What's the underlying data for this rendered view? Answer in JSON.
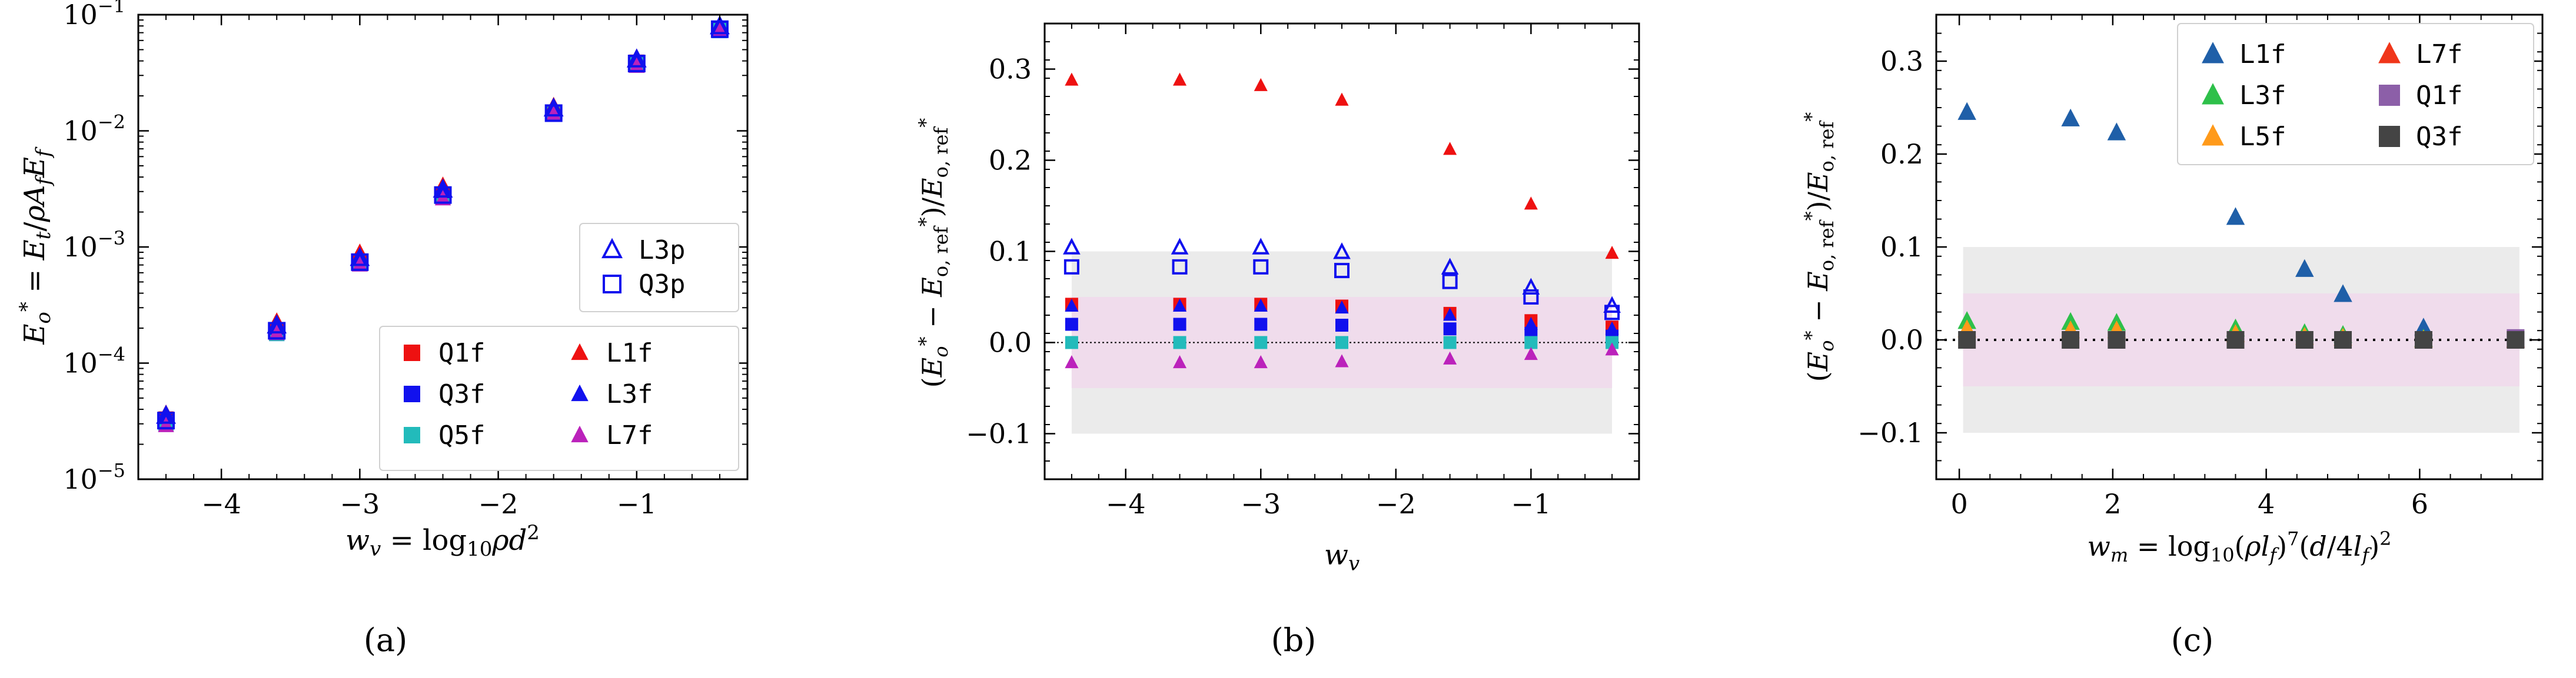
{
  "figure": {
    "panels": [
      {
        "id": "a",
        "caption": "(a)",
        "chart_data": {
          "type": "scatter",
          "yscale": "log",
          "xlabel": "w_v = log10 ρ d²",
          "ylabel": "E_o* = E_t / ρ A_f E_f",
          "xlim": [
            -4.6,
            -0.2
          ],
          "ylim": [
            1e-05,
            0.1
          ],
          "xticks": [
            -4,
            -3,
            -2,
            -1
          ],
          "xtick_labels": [
            "−4",
            "−3",
            "−2",
            "−1"
          ],
          "ytick_exponents": [
            -5,
            -4,
            -3,
            -2,
            -1
          ],
          "x": [
            -4.4,
            -3.6,
            -3.0,
            -2.4,
            -1.6,
            -1.0,
            -0.4
          ],
          "series": [
            {
              "name": "Q1f",
              "marker": "square",
              "filled": true,
              "color": "#ee1111",
              "values": [
                3.3e-05,
                0.00019,
                0.00075,
                0.0028,
                0.0145,
                0.039,
                0.075
              ]
            },
            {
              "name": "Q3f",
              "marker": "square",
              "filled": true,
              "color": "#1111ee",
              "values": [
                3.1e-05,
                0.00018,
                0.00073,
                0.0027,
                0.014,
                0.038,
                0.074
              ]
            },
            {
              "name": "Q5f",
              "marker": "square",
              "filled": true,
              "color": "#22bbbb",
              "values": [
                3e-05,
                0.00018,
                0.00072,
                0.0027,
                0.014,
                0.037,
                0.073
              ]
            },
            {
              "name": "L1f",
              "marker": "triangle",
              "filled": true,
              "color": "#ee1111",
              "values": [
                3.7e-05,
                0.00023,
                0.0009,
                0.0034,
                0.0165,
                0.043,
                0.082
              ]
            },
            {
              "name": "L3f",
              "marker": "triangle",
              "filled": true,
              "color": "#1111ee",
              "values": [
                3.4e-05,
                0.0002,
                0.00078,
                0.003,
                0.0152,
                0.04,
                0.077
              ]
            },
            {
              "name": "L7f",
              "marker": "triangle",
              "filled": true,
              "color": "#bb22bb",
              "values": [
                2.9e-05,
                0.00018,
                0.0007,
                0.0026,
                0.0138,
                0.036,
                0.072
              ]
            },
            {
              "name": "L3p",
              "marker": "triangle",
              "filled": false,
              "color": "#1111ee",
              "values": [
                3.5e-05,
                0.00021,
                0.0008,
                0.0031,
                0.0155,
                0.041,
                0.079
              ]
            },
            {
              "name": "Q3p",
              "marker": "square",
              "filled": false,
              "color": "#1111ee",
              "values": [
                3.2e-05,
                0.00019,
                0.00074,
                0.0028,
                0.0142,
                0.038,
                0.075
              ]
            }
          ],
          "legends": [
            {
              "position": "middle-right",
              "cols": 1,
              "entries": [
                "L3p",
                "Q3p"
              ]
            },
            {
              "position": "bottom-right",
              "cols": 2,
              "entries": [
                "Q1f",
                "L1f",
                "Q3f",
                "L3f",
                "Q5f",
                "L7f"
              ]
            }
          ]
        }
      },
      {
        "id": "b",
        "caption": "(b)",
        "chart_data": {
          "type": "scatter",
          "xlabel": "w_v",
          "ylabel": "(E_o* − E*_o,ref) / E*_o,ref",
          "xlim": [
            -4.6,
            -0.2
          ],
          "ylim": [
            -0.15,
            0.35
          ],
          "xticks": [
            -4,
            -3,
            -2,
            -1
          ],
          "xtick_labels": [
            "−4",
            "−3",
            "−2",
            "−1"
          ],
          "yticks": [
            -0.1,
            0.0,
            0.1,
            0.2,
            0.3
          ],
          "ytick_labels": [
            "−0.1",
            "0.0",
            "0.1",
            "0.2",
            "0.3"
          ],
          "bands": [
            {
              "range": [
                -0.1,
                0.1
              ],
              "x_range": [
                -4.4,
                -0.4
              ],
              "color": "#ebebeb"
            },
            {
              "range": [
                -0.05,
                0.05
              ],
              "x_range": [
                -4.4,
                -0.4
              ],
              "color": "#f0dcec"
            }
          ],
          "reference_line": 0,
          "x": [
            -4.4,
            -3.6,
            -3.0,
            -2.4,
            -1.6,
            -1.0,
            -0.4
          ],
          "series": [
            {
              "name": "L1f",
              "marker": "triangle",
              "filled": true,
              "color": "#ee1111",
              "values": [
                0.288,
                0.288,
                0.282,
                0.266,
                0.212,
                0.152,
                0.098
              ]
            },
            {
              "name": "L3p",
              "marker": "triangle",
              "filled": false,
              "color": "#1111ee",
              "values": [
                0.104,
                0.104,
                0.104,
                0.099,
                0.082,
                0.06,
                0.04
              ]
            },
            {
              "name": "Q3p",
              "marker": "square",
              "filled": false,
              "color": "#1111ee",
              "values": [
                0.083,
                0.083,
                0.083,
                0.079,
                0.067,
                0.05,
                0.033
              ]
            },
            {
              "name": "Q1f",
              "marker": "square",
              "filled": true,
              "color": "#ee1111",
              "values": [
                0.042,
                0.042,
                0.042,
                0.04,
                0.032,
                0.024,
                0.017
              ]
            },
            {
              "name": "L3f",
              "marker": "triangle",
              "filled": true,
              "color": "#1111ee",
              "values": [
                0.04,
                0.04,
                0.04,
                0.038,
                0.03,
                0.02,
                0.015
              ]
            },
            {
              "name": "Q3f",
              "marker": "square",
              "filled": true,
              "color": "#1111ee",
              "values": [
                0.02,
                0.02,
                0.02,
                0.019,
                0.015,
                0.01,
                0.007
              ]
            },
            {
              "name": "Q5f",
              "marker": "square",
              "filled": true,
              "color": "#22bbbb",
              "values": [
                0.0,
                0.0,
                0.0,
                0.0,
                0.0,
                0.0,
                0.0
              ]
            },
            {
              "name": "L7f",
              "marker": "triangle",
              "filled": true,
              "color": "#bb22bb",
              "values": [
                -0.022,
                -0.022,
                -0.022,
                -0.021,
                -0.018,
                -0.013,
                -0.008
              ]
            }
          ]
        }
      },
      {
        "id": "c",
        "caption": "(c)",
        "chart_data": {
          "type": "scatter",
          "xlabel": "w_m = log10 (ρ l_f)^7 (d / 4 l_f)^2",
          "ylabel": "(E_o* − E*_o,ref) / E*_o,ref",
          "xlim": [
            -0.3,
            7.6
          ],
          "ylim": [
            -0.15,
            0.35
          ],
          "xticks": [
            0,
            2,
            4,
            6
          ],
          "xtick_labels": [
            "0",
            "2",
            "4",
            "6"
          ],
          "yticks": [
            -0.1,
            0.0,
            0.1,
            0.2,
            0.3
          ],
          "ytick_labels": [
            "−0.1",
            "0.0",
            "0.1",
            "0.2",
            "0.3"
          ],
          "bands": [
            {
              "range": [
                -0.1,
                0.1
              ],
              "x_range": [
                0.05,
                7.3
              ],
              "color": "#ebebeb"
            },
            {
              "range": [
                -0.05,
                0.05
              ],
              "x_range": [
                0.05,
                7.3
              ],
              "color": "#f0dcec"
            }
          ],
          "reference_line": 0,
          "series": [
            {
              "name": "L1f",
              "marker": "triangle",
              "filled": true,
              "color": "#1f5fa8",
              "x": [
                0.1,
                1.45,
                2.05,
                3.6,
                4.5,
                5.0,
                6.05
              ],
              "values": [
                0.245,
                0.238,
                0.223,
                0.132,
                0.076,
                0.049,
                0.013
              ]
            },
            {
              "name": "L3f",
              "marker": "triangle",
              "filled": true,
              "color": "#2ec04a",
              "x": [
                0.1,
                1.45,
                2.05,
                3.6,
                4.5,
                5.0,
                6.05
              ],
              "values": [
                0.02,
                0.019,
                0.018,
                0.012,
                0.007,
                0.005,
                0.001
              ]
            },
            {
              "name": "L5f",
              "marker": "triangle",
              "filled": true,
              "color": "#ff9a1a",
              "x": [
                0.1,
                1.45,
                2.05,
                3.6,
                4.5,
                5.0,
                6.05
              ],
              "values": [
                0.011,
                0.01,
                0.01,
                0.006,
                0.003,
                0.002,
                0.0
              ]
            },
            {
              "name": "L7f",
              "marker": "triangle",
              "filled": true,
              "color": "#f0361a",
              "x": [
                7.25
              ],
              "values": [
                0.0
              ]
            },
            {
              "name": "Q1f",
              "marker": "square",
              "filled": true,
              "color": "#8c5fa8",
              "x": [
                7.25
              ],
              "values": [
                0.002
              ]
            },
            {
              "name": "Q3f",
              "marker": "square",
              "filled": true,
              "color": "#444444",
              "x": [
                0.1,
                1.45,
                2.05,
                3.6,
                4.5,
                5.0,
                6.05,
                7.25
              ],
              "values": [
                0.0,
                0.0,
                0.0,
                0.0,
                0.0,
                0.0,
                0.0,
                0.0
              ]
            }
          ],
          "legends": [
            {
              "position": "top-right",
              "cols": 2,
              "entries": [
                "L1f",
                "L7f",
                "L3f",
                "Q1f",
                "L5f",
                "Q3f"
              ]
            }
          ]
        }
      }
    ]
  }
}
